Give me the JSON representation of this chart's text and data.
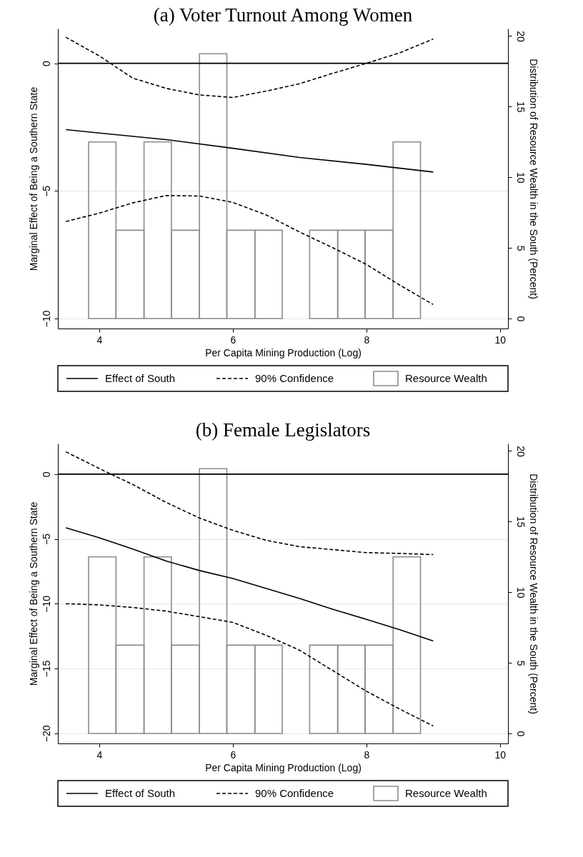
{
  "chart_data": [
    {
      "type": "line",
      "title": "(a) Voter Turnout Among Women",
      "xlabel": "Per Capita Mining Production (Log)",
      "ylabel": "Marginal Effect of Being a Southern State",
      "y2label": "Distribution of Resource Wealth in the South (Percent)",
      "xlim": [
        3.38,
        10.12
      ],
      "xticks": [
        4,
        6,
        8,
        10
      ],
      "ylim": [
        -10.39,
        1.36
      ],
      "yticks": [
        -10,
        -5,
        0
      ],
      "y2lim": [
        -0.71,
        20.53
      ],
      "y2ticks": [
        0,
        5,
        10,
        15,
        20
      ],
      "grid": "y",
      "legend": "bottom",
      "ref_lines": [
        {
          "axis": "y",
          "value": 0,
          "color": "#000000"
        }
      ],
      "series": [
        {
          "name": "Effect of South",
          "color": "#000000",
          "line_style": "solid",
          "x": [
            3.5,
            4,
            5,
            6,
            7,
            8,
            9
          ],
          "values": [
            -2.6,
            -2.73,
            -2.99,
            -3.33,
            -3.69,
            -3.96,
            -4.26
          ]
        },
        {
          "name": "90% Confidence",
          "color": "#000000",
          "line_style": "dashed",
          "x": [
            3.5,
            4,
            4.5,
            5,
            5.5,
            6,
            6.5,
            7,
            7.5,
            8,
            8.5,
            9
          ],
          "values": [
            1.02,
            0.29,
            -0.58,
            -0.98,
            -1.24,
            -1.34,
            -1.09,
            -0.8,
            -0.39,
            0,
            0.41,
            0.95
          ]
        },
        {
          "color": "#000000",
          "line_style": "dashed",
          "x": [
            3.5,
            4,
            4.5,
            5,
            5.5,
            6,
            6.5,
            7,
            7.5,
            8,
            8.5,
            9
          ],
          "values": [
            -6.2,
            -5.87,
            -5.47,
            -5.18,
            -5.2,
            -5.45,
            -5.94,
            -6.61,
            -7.23,
            -7.88,
            -8.69,
            -9.45
          ]
        },
        {
          "name": "Resource Wealth",
          "type": "histogram",
          "axis": "y2",
          "color": "#8c8c8c",
          "bins": [
            3.84,
            4.25,
            4.67,
            5.08,
            5.5,
            5.91,
            6.33,
            6.74,
            7.15,
            7.57,
            7.98,
            8.4,
            8.81
          ],
          "values": [
            12.5,
            6.25,
            12.5,
            6.25,
            18.75,
            6.25,
            6.25,
            0,
            6.25,
            6.25,
            6.25,
            12.5
          ]
        }
      ]
    },
    {
      "type": "line",
      "title": "(b) Female Legislators",
      "xlabel": "Per Capita Mining Production (Log)",
      "ylabel": "Marginal Effect of Being a Southern State",
      "y2label": "Distribution of Resource Wealth in the South (Percent)",
      "xlim": [
        3.38,
        10.12
      ],
      "xticks": [
        4,
        6,
        8,
        10
      ],
      "ylim": [
        -20.78,
        2.36
      ],
      "yticks": [
        -20,
        -15,
        -10,
        -5,
        0
      ],
      "y2lim": [
        -0.71,
        20.53
      ],
      "y2ticks": [
        0,
        5,
        10,
        15,
        20
      ],
      "grid": "y",
      "legend": "bottom",
      "ref_lines": [
        {
          "axis": "y",
          "value": 0,
          "color": "#000000"
        }
      ],
      "series": [
        {
          "name": "Effect of South",
          "color": "#000000",
          "line_style": "solid",
          "x": [
            3.5,
            4,
            4.5,
            5,
            5.5,
            6,
            6.5,
            7,
            7.5,
            8,
            8.5,
            9
          ],
          "values": [
            -4.14,
            -4.91,
            -5.78,
            -6.7,
            -7.44,
            -8.05,
            -8.82,
            -9.6,
            -10.43,
            -11.21,
            -12.01,
            -12.87
          ]
        },
        {
          "name": "90% Confidence",
          "color": "#000000",
          "line_style": "dashed",
          "x": [
            3.5,
            4,
            4.5,
            5,
            5.5,
            6,
            6.5,
            7,
            7.5,
            8,
            8.5,
            9
          ],
          "values": [
            1.72,
            0.43,
            -0.8,
            -2.18,
            -3.39,
            -4.34,
            -5.11,
            -5.6,
            -5.83,
            -6.06,
            -6.12,
            -6.21
          ]
        },
        {
          "color": "#000000",
          "line_style": "dashed",
          "x": [
            3.5,
            4,
            4.5,
            5,
            5.5,
            6,
            6.5,
            7,
            7.5,
            8,
            8.5,
            9
          ],
          "values": [
            -10.0,
            -10.09,
            -10.29,
            -10.57,
            -11.0,
            -11.44,
            -12.44,
            -13.59,
            -15.17,
            -16.75,
            -18.13,
            -19.43
          ]
        },
        {
          "name": "Resource Wealth",
          "type": "histogram",
          "axis": "y2",
          "color": "#8c8c8c",
          "bins": [
            3.84,
            4.25,
            4.67,
            5.08,
            5.5,
            5.91,
            6.33,
            6.74,
            7.15,
            7.57,
            7.98,
            8.4,
            8.81
          ],
          "values": [
            12.5,
            6.25,
            12.5,
            6.25,
            18.75,
            6.25,
            6.25,
            0,
            6.25,
            6.25,
            6.25,
            12.5
          ]
        }
      ]
    }
  ]
}
